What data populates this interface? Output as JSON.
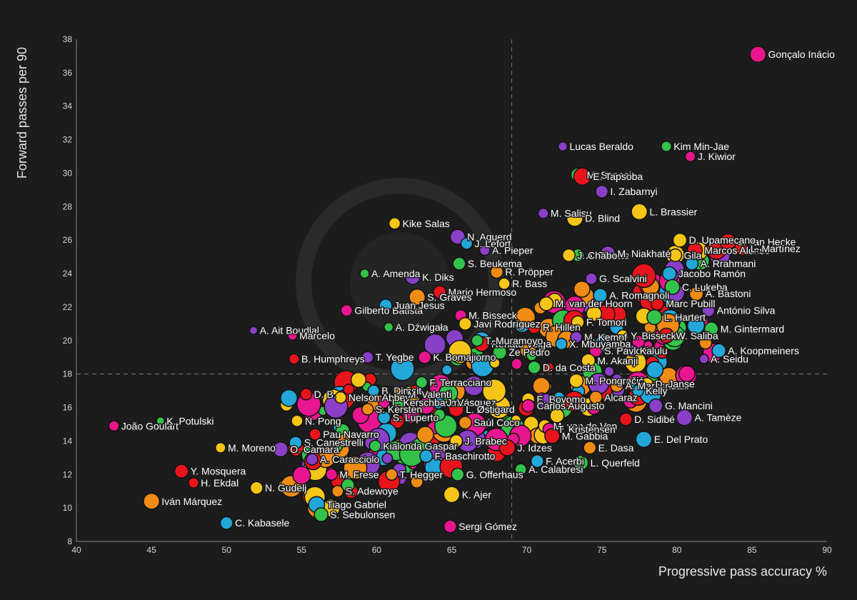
{
  "chart_data": {
    "type": "scatter",
    "title": "",
    "xlabel": "Progressive pass accuracy %",
    "ylabel": "Forward passes per 90",
    "xlim": [
      40,
      90
    ],
    "ylim": [
      8,
      38
    ],
    "xticks": [
      40,
      45,
      50,
      55,
      60,
      65,
      70,
      75,
      80,
      85,
      90
    ],
    "yticks": [
      8,
      10,
      12,
      14,
      16,
      18,
      20,
      22,
      24,
      26,
      28,
      30,
      32,
      34,
      36,
      38
    ],
    "reference_lines": {
      "x": 69,
      "y": 18
    },
    "grid": false,
    "legend": "none",
    "palette": [
      "#e8141c",
      "#e8168e",
      "#23a6d8",
      "#33c24a",
      "#8a3fc7",
      "#f5c518",
      "#f08c14"
    ],
    "labeled_points": [
      {
        "name": "Gonçalo Inácio",
        "x": 85.4,
        "y": 37.1,
        "c": 1,
        "s": 1.4
      },
      {
        "name": "Lucas Beraldo",
        "x": 72.4,
        "y": 31.6,
        "c": 4,
        "s": 0.8
      },
      {
        "name": "Kim Min-Jae",
        "x": 79.3,
        "y": 31.6,
        "c": 3,
        "s": 0.9
      },
      {
        "name": "J. Kiwior",
        "x": 80.9,
        "y": 31.0,
        "c": 1,
        "s": 0.9
      },
      {
        "name": "M. Senesi",
        "x": 73.4,
        "y": 29.9,
        "c": 3,
        "s": 1.2
      },
      {
        "name": "E. Tapsoba",
        "x": 73.7,
        "y": 29.8,
        "c": 0,
        "s": 1.5
      },
      {
        "name": "I. Zabarnyi",
        "x": 75.0,
        "y": 28.9,
        "c": 4,
        "s": 1.1
      },
      {
        "name": "M. Salisu",
        "x": 71.1,
        "y": 27.6,
        "c": 4,
        "s": 0.9
      },
      {
        "name": "J. van Hecke",
        "x": 83.4,
        "y": 25.9,
        "c": 0,
        "s": 1.4
      },
      {
        "name": "Kike Salas",
        "x": 61.2,
        "y": 27.0,
        "c": 5,
        "s": 1.0
      },
      {
        "name": "N. Aguerd",
        "x": 65.4,
        "y": 26.2,
        "c": 4,
        "s": 1.3
      },
      {
        "name": "D. Blind",
        "x": 73.2,
        "y": 27.3,
        "c": 5,
        "s": 1.4
      },
      {
        "name": "L. Brassier",
        "x": 77.5,
        "y": 27.7,
        "c": 5,
        "s": 1.4
      },
      {
        "name": "D. Upamecano",
        "x": 80.2,
        "y": 26.0,
        "c": 5,
        "s": 1.2
      },
      {
        "name": "Marcos Alonso",
        "x": 81.2,
        "y": 25.4,
        "c": 0,
        "s": 1.3
      },
      {
        "name": "L. Martínez",
        "x": 84.3,
        "y": 25.5,
        "c": 0,
        "s": 1.2
      },
      {
        "name": "J. Lefort",
        "x": 66.0,
        "y": 25.8,
        "c": 2,
        "s": 1.0
      },
      {
        "name": "A. Pieper",
        "x": 67.2,
        "y": 25.4,
        "c": 4,
        "s": 0.9
      },
      {
        "name": "A. Theate",
        "x": 73.4,
        "y": 25.1,
        "c": 3,
        "s": 1.1
      },
      {
        "name": "J. Chabot",
        "x": 72.8,
        "y": 25.1,
        "c": 5,
        "s": 1.1
      },
      {
        "name": "M. Niakhaté",
        "x": 75.4,
        "y": 25.2,
        "c": 4,
        "s": 1.3
      },
      {
        "name": "Gila",
        "x": 79.9,
        "y": 25.1,
        "c": 5,
        "s": 1.1
      },
      {
        "name": "A. Rrahmani",
        "x": 81.0,
        "y": 24.6,
        "c": 2,
        "s": 1.1
      },
      {
        "name": "S. Beukema",
        "x": 65.5,
        "y": 24.6,
        "c": 3,
        "s": 1.1
      },
      {
        "name": "G. Scalvini",
        "x": 74.3,
        "y": 23.7,
        "c": 4,
        "s": 1.0
      },
      {
        "name": "A. Amenda",
        "x": 59.2,
        "y": 24.0,
        "c": 3,
        "s": 0.8
      },
      {
        "name": "K. Diks",
        "x": 62.4,
        "y": 23.8,
        "c": 4,
        "s": 1.3
      },
      {
        "name": "R. Pröpper",
        "x": 68.0,
        "y": 24.1,
        "c": 6,
        "s": 1.1
      },
      {
        "name": "R. Bass",
        "x": 68.5,
        "y": 23.4,
        "c": 5,
        "s": 1.0
      },
      {
        "name": "Jacobo Ramón",
        "x": 79.5,
        "y": 24.0,
        "c": 2,
        "s": 1.2
      },
      {
        "name": "C. Lukeba",
        "x": 79.7,
        "y": 23.2,
        "c": 3,
        "s": 1.3
      },
      {
        "name": "A. Bastoni",
        "x": 81.3,
        "y": 22.8,
        "c": 6,
        "s": 1.2
      },
      {
        "name": "Mario Hermoso",
        "x": 64.2,
        "y": 22.9,
        "c": 0,
        "s": 1.1
      },
      {
        "name": "A. Romagnoli",
        "x": 74.9,
        "y": 22.7,
        "c": 2,
        "s": 1.2
      },
      {
        "name": "S. Graves",
        "x": 62.7,
        "y": 22.6,
        "c": 6,
        "s": 1.4
      },
      {
        "name": "M. van der Hoorn",
        "x": 71.3,
        "y": 22.2,
        "c": 5,
        "s": 1.2
      },
      {
        "name": "Marc Pubill",
        "x": 78.7,
        "y": 22.2,
        "c": 0,
        "s": 1.1
      },
      {
        "name": "L. Hartert",
        "x": 78.5,
        "y": 21.4,
        "c": 3,
        "s": 1.3
      },
      {
        "name": "António Silva",
        "x": 82.1,
        "y": 21.8,
        "c": 4,
        "s": 1.1
      },
      {
        "name": "Gilberto Batista",
        "x": 58.0,
        "y": 21.8,
        "c": 1,
        "s": 1.0
      },
      {
        "name": "Juan Jesus",
        "x": 60.6,
        "y": 22.1,
        "c": 2,
        "s": 1.1
      },
      {
        "name": "M. Bisseck",
        "x": 65.6,
        "y": 21.5,
        "c": 1,
        "s": 1.0
      },
      {
        "name": "Javi Rodríguez",
        "x": 65.9,
        "y": 21.0,
        "c": 5,
        "s": 1.1
      },
      {
        "name": "A. Dźwigała",
        "x": 60.8,
        "y": 20.8,
        "c": 3,
        "s": 0.8
      },
      {
        "name": "R. Hillen",
        "x": 70.5,
        "y": 20.8,
        "c": 0,
        "s": 1.1
      },
      {
        "name": "F. Tomori",
        "x": 73.4,
        "y": 21.1,
        "c": 5,
        "s": 1.1
      },
      {
        "name": "Y. Bisseck",
        "x": 76.4,
        "y": 20.3,
        "c": 5,
        "s": 1.0
      },
      {
        "name": "W. Saliba",
        "x": 79.3,
        "y": 20.3,
        "c": 0,
        "s": 1.3
      },
      {
        "name": "M. Gintermard",
        "x": 82.3,
        "y": 20.7,
        "c": 3,
        "s": 1.2
      },
      {
        "name": "A. Ait Boudlal",
        "x": 51.8,
        "y": 20.6,
        "c": 4,
        "s": 0.7
      },
      {
        "name": "Marcelo",
        "x": 54.4,
        "y": 20.3,
        "c": 1,
        "s": 0.8
      },
      {
        "name": "M. Kempf",
        "x": 73.3,
        "y": 20.2,
        "c": 4,
        "s": 1.0
      },
      {
        "name": "Renato Veiga",
        "x": 67.0,
        "y": 19.8,
        "c": 0,
        "s": 1.3
      },
      {
        "name": "T. Muramoyo",
        "x": 66.7,
        "y": 20.0,
        "c": 3,
        "s": 1.0
      },
      {
        "name": "X. Mbuyamba",
        "x": 72.3,
        "y": 19.8,
        "c": 2,
        "s": 1.0
      },
      {
        "name": "S. Pavlović",
        "x": 74.6,
        "y": 19.4,
        "c": 1,
        "s": 1.1
      },
      {
        "name": "Kalulu",
        "x": 77.0,
        "y": 19.4,
        "c": 4,
        "s": 1.0
      },
      {
        "name": "Ze Pedro",
        "x": 68.2,
        "y": 19.3,
        "c": 3,
        "s": 1.2
      },
      {
        "name": "A. Koopmeiners",
        "x": 82.8,
        "y": 19.4,
        "c": 2,
        "s": 1.2
      },
      {
        "name": "T. Yegbe",
        "x": 59.4,
        "y": 19.0,
        "c": 4,
        "s": 1.0
      },
      {
        "name": "B. Humphreys",
        "x": 54.5,
        "y": 18.9,
        "c": 0,
        "s": 0.9
      },
      {
        "name": "K. Bomajiorno",
        "x": 63.2,
        "y": 19.0,
        "c": 1,
        "s": 1.1
      },
      {
        "name": "M. Akanji",
        "x": 74.1,
        "y": 18.8,
        "c": 5,
        "s": 1.2
      },
      {
        "name": "A. Seidu",
        "x": 81.8,
        "y": 18.9,
        "c": 4,
        "s": 0.8
      },
      {
        "name": "D. da Costa",
        "x": 70.5,
        "y": 18.4,
        "c": 3,
        "s": 1.1
      },
      {
        "name": "M. Pongračić",
        "x": 73.3,
        "y": 17.6,
        "c": 5,
        "s": 1.2
      },
      {
        "name": "A. Marcandalli",
        "x": 76.0,
        "y": 17.3,
        "c": 6,
        "s": 1.1
      },
      {
        "name": "D. Janse",
        "x": 78.0,
        "y": 17.4,
        "c": 5,
        "s": 1.1
      },
      {
        "name": "Kelly",
        "x": 77.4,
        "y": 17.0,
        "c": 2,
        "s": 1.0
      },
      {
        "name": "F. Terracciano",
        "x": 63.0,
        "y": 17.5,
        "c": 3,
        "s": 1.0
      },
      {
        "name": "B. Dimsit",
        "x": 59.8,
        "y": 17.0,
        "c": 2,
        "s": 1.0
      },
      {
        "name": "M. Valenti",
        "x": 61.5,
        "y": 16.8,
        "c": 6,
        "s": 1.1
      },
      {
        "name": "D. B.",
        "x": 55.3,
        "y": 16.8,
        "c": 0,
        "s": 1.0
      },
      {
        "name": "Nelson Abbey",
        "x": 57.6,
        "y": 16.6,
        "c": 5,
        "s": 1.0
      },
      {
        "name": "L. Kerschbaumer",
        "x": 60.5,
        "y": 16.3,
        "c": 1,
        "s": 1.0
      },
      {
        "name": "J. Vásquez",
        "x": 64.1,
        "y": 16.3,
        "c": 2,
        "s": 1.1
      },
      {
        "name": "E. Boyomo",
        "x": 70.1,
        "y": 16.5,
        "c": 5,
        "s": 1.1
      },
      {
        "name": "Alcaraz",
        "x": 74.6,
        "y": 16.6,
        "c": 6,
        "s": 1.1
      },
      {
        "name": "S. Kersten",
        "x": 59.4,
        "y": 15.9,
        "c": 6,
        "s": 1.0
      },
      {
        "name": "L. Østigard",
        "x": 65.3,
        "y": 15.9,
        "c": 0,
        "s": 1.3
      },
      {
        "name": "Carlos Augusto",
        "x": 70.1,
        "y": 16.1,
        "c": 1,
        "s": 1.1
      },
      {
        "name": "G. Mancini",
        "x": 78.6,
        "y": 16.1,
        "c": 4,
        "s": 1.2
      },
      {
        "name": "A. Tamèze",
        "x": 80.5,
        "y": 15.4,
        "c": 4,
        "s": 1.4
      },
      {
        "name": "S. Luperto",
        "x": 60.5,
        "y": 15.4,
        "c": 2,
        "s": 1.1
      },
      {
        "name": "Saúl Coco",
        "x": 65.9,
        "y": 15.1,
        "c": 6,
        "s": 1.1
      },
      {
        "name": "M. van de Ven",
        "x": 71.2,
        "y": 14.9,
        "c": 5,
        "s": 1.1
      },
      {
        "name": "D. Sidibé",
        "x": 76.6,
        "y": 15.3,
        "c": 0,
        "s": 1.1
      },
      {
        "name": "João Goulart",
        "x": 42.5,
        "y": 14.9,
        "c": 1,
        "s": 0.9
      },
      {
        "name": "K. Potulski",
        "x": 45.6,
        "y": 15.2,
        "c": 3,
        "s": 0.7
      },
      {
        "name": "N. Pong",
        "x": 54.7,
        "y": 15.2,
        "c": 5,
        "s": 1.0
      },
      {
        "name": "Pau Navarro",
        "x": 55.9,
        "y": 14.4,
        "c": 0,
        "s": 1.0
      },
      {
        "name": "T. Kristensen",
        "x": 71.5,
        "y": 14.7,
        "c": 1,
        "s": 1.1
      },
      {
        "name": "M. Gabbia",
        "x": 71.7,
        "y": 14.3,
        "c": 0,
        "s": 1.3
      },
      {
        "name": "J. Brabec",
        "x": 65.3,
        "y": 14.0,
        "c": 5,
        "s": 1.1
      },
      {
        "name": "E. Del Prato",
        "x": 77.8,
        "y": 14.1,
        "c": 2,
        "s": 1.4
      },
      {
        "name": "S. Canestrelli",
        "x": 54.6,
        "y": 13.9,
        "c": 2,
        "s": 1.1
      },
      {
        "name": "M. Moreno",
        "x": 49.6,
        "y": 13.6,
        "c": 5,
        "s": 0.9
      },
      {
        "name": "O. Camara",
        "x": 53.6,
        "y": 13.5,
        "c": 4,
        "s": 1.3
      },
      {
        "name": "Kialonda Gaspar",
        "x": 59.9,
        "y": 13.7,
        "c": 3,
        "s": 1.0
      },
      {
        "name": "J. Idzes",
        "x": 68.7,
        "y": 13.6,
        "c": 0,
        "s": 1.4
      },
      {
        "name": "E. Dasa",
        "x": 74.2,
        "y": 13.6,
        "c": 6,
        "s": 1.1
      },
      {
        "name": "F. Baschirotto",
        "x": 63.3,
        "y": 13.1,
        "c": 2,
        "s": 1.1
      },
      {
        "name": "A. Caracciolo",
        "x": 55.7,
        "y": 12.9,
        "c": 4,
        "s": 1.0
      },
      {
        "name": "F. Acerbi",
        "x": 70.7,
        "y": 12.8,
        "c": 2,
        "s": 1.1
      },
      {
        "name": "L. Querfeld",
        "x": 73.6,
        "y": 12.7,
        "c": 3,
        "s": 1.3
      },
      {
        "name": "A. Calabresi",
        "x": 69.6,
        "y": 12.3,
        "c": 3,
        "s": 1.0
      },
      {
        "name": "Y. Mosquera",
        "x": 47.0,
        "y": 12.2,
        "c": 0,
        "s": 1.2
      },
      {
        "name": "T. Hegger",
        "x": 61.0,
        "y": 12.0,
        "c": 6,
        "s": 1.0
      },
      {
        "name": "G. Offerhaus",
        "x": 65.4,
        "y": 12.0,
        "c": 3,
        "s": 1.1
      },
      {
        "name": "M. Frese",
        "x": 57.0,
        "y": 12.0,
        "c": 1,
        "s": 1.0
      },
      {
        "name": "H. Ekdal",
        "x": 47.8,
        "y": 11.5,
        "c": 0,
        "s": 0.9
      },
      {
        "name": "N. Gudelj",
        "x": 52.0,
        "y": 11.2,
        "c": 5,
        "s": 1.1
      },
      {
        "name": "S. Adewoye",
        "x": 57.4,
        "y": 11.0,
        "c": 6,
        "s": 1.0
      },
      {
        "name": "K. Ajer",
        "x": 65.0,
        "y": 10.8,
        "c": 5,
        "s": 1.4
      },
      {
        "name": "Iván Márquez",
        "x": 45.0,
        "y": 10.4,
        "c": 6,
        "s": 1.4
      },
      {
        "name": "Tiago Gabriel",
        "x": 56.0,
        "y": 10.2,
        "c": 2,
        "s": 1.4
      },
      {
        "name": "S. Sebulonsen",
        "x": 56.3,
        "y": 9.6,
        "c": 3,
        "s": 1.2
      },
      {
        "name": "C. Kabasele",
        "x": 50.0,
        "y": 9.1,
        "c": 2,
        "s": 1.1
      },
      {
        "name": "Sergi Gómez",
        "x": 64.9,
        "y": 8.9,
        "c": 1,
        "s": 1.1
      }
    ]
  }
}
